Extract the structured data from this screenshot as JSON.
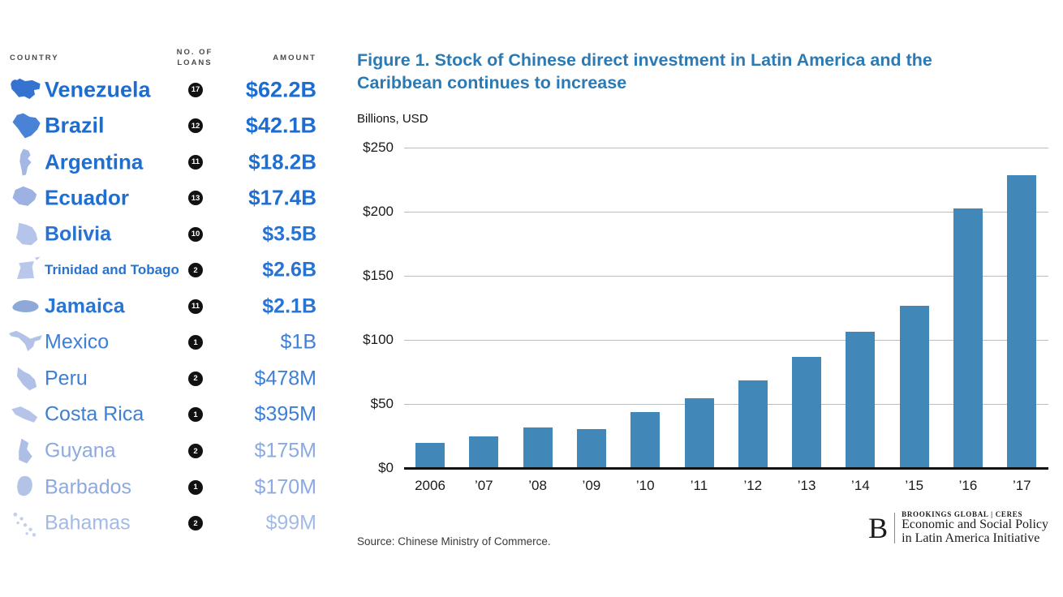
{
  "accent_colors": {
    "bar": "#4187b8",
    "title": "#2b7ab3"
  },
  "table": {
    "headers": {
      "country": "COUNTRY",
      "loans_line1": "NO. OF",
      "loans_line2": "LOANS",
      "amount": "AMOUNT"
    },
    "rows": [
      {
        "country": "Venezuela",
        "loans": "17",
        "amount": "$62.2B",
        "color": "#1c6dd2",
        "icon_color": "#3473d0",
        "weight": "700",
        "size": 27,
        "amount_size": 27
      },
      {
        "country": "Brazil",
        "loans": "12",
        "amount": "$42.1B",
        "color": "#1c6dd2",
        "icon_color": "#4a82d8",
        "weight": "700",
        "size": 27,
        "amount_size": 27
      },
      {
        "country": "Argentina",
        "loans": "11",
        "amount": "$18.2B",
        "color": "#1f6fd3",
        "icon_color": "#a4b7e5",
        "weight": "700",
        "size": 26,
        "amount_size": 26
      },
      {
        "country": "Ecuador",
        "loans": "13",
        "amount": "$17.4B",
        "color": "#1f6fd3",
        "icon_color": "#9db2e2",
        "weight": "700",
        "size": 26,
        "amount_size": 26
      },
      {
        "country": "Bolivia",
        "loans": "10",
        "amount": "$3.5B",
        "color": "#2673d4",
        "icon_color": "#b5c4ea",
        "weight": "700",
        "size": 25,
        "amount_size": 25
      },
      {
        "country": "Trinidad and Tobago",
        "loans": "2",
        "amount": "$2.6B",
        "color": "#2673d4",
        "icon_color": "#b9c7eb",
        "weight": "700",
        "size": 17,
        "amount_size": 25
      },
      {
        "country": "Jamaica",
        "loans": "11",
        "amount": "$2.1B",
        "color": "#2a75d4",
        "icon_color": "#8ea8d8",
        "weight": "700",
        "size": 25,
        "amount_size": 25
      },
      {
        "country": "Mexico",
        "loans": "1",
        "amount": "$1B",
        "color": "#3e7fd6",
        "icon_color": "#b3c2e7",
        "weight": "400",
        "size": 25,
        "amount_size": 25
      },
      {
        "country": "Peru",
        "loans": "2",
        "amount": "$478M",
        "color": "#3e7fd6",
        "icon_color": "#b0c0e6",
        "weight": "400",
        "size": 25,
        "amount_size": 25
      },
      {
        "country": "Costa Rica",
        "loans": "1",
        "amount": "$395M",
        "color": "#3e7fd6",
        "icon_color": "#b5c4e8",
        "weight": "400",
        "size": 25,
        "amount_size": 25
      },
      {
        "country": "Guyana",
        "loans": "2",
        "amount": "$175M",
        "color": "#8ca9e0",
        "icon_color": "#aebfe6",
        "weight": "300",
        "size": 25,
        "amount_size": 25
      },
      {
        "country": "Barbados",
        "loans": "1",
        "amount": "$170M",
        "color": "#8ca9e0",
        "icon_color": "#b3c3e8",
        "weight": "300",
        "size": 25,
        "amount_size": 25
      },
      {
        "country": "Bahamas",
        "loans": "2",
        "amount": "$99M",
        "color": "#a3b9e6",
        "icon_color": "#c4d0ee",
        "weight": "300",
        "size": 25,
        "amount_size": 25
      }
    ]
  },
  "chart": {
    "title": "Figure 1. Stock of Chinese direct investment in Latin America and the Caribbean continues to increase",
    "units_label": "Billions, USD",
    "source": "Source: Chinese Ministry of Commerce."
  },
  "chart_data": [
    {
      "type": "bar",
      "title": "Figure 1. Stock of Chinese direct investment in Latin America and the Caribbean continues to increase",
      "ylabel": "Billions, USD",
      "categories": [
        "2006",
        "’07",
        "’08",
        "’09",
        "’10",
        "’11",
        "’12",
        "’13",
        "’14",
        "’15",
        "’16",
        "’17"
      ],
      "values": [
        19,
        24,
        31,
        30,
        43,
        54,
        68,
        86,
        106,
        126,
        202,
        228
      ],
      "yticks": [
        "$0",
        "$50",
        "$100",
        "$150",
        "$200",
        "$250"
      ],
      "ytick_values": [
        0,
        50,
        100,
        150,
        200,
        250
      ],
      "ylim": [
        0,
        250
      ],
      "grid": true,
      "legend": false
    },
    {
      "type": "table",
      "columns": [
        "COUNTRY",
        "NO. OF LOANS",
        "AMOUNT"
      ],
      "rows": [
        [
          "Venezuela",
          17,
          "$62.2B"
        ],
        [
          "Brazil",
          12,
          "$42.1B"
        ],
        [
          "Argentina",
          11,
          "$18.2B"
        ],
        [
          "Ecuador",
          13,
          "$17.4B"
        ],
        [
          "Bolivia",
          10,
          "$3.5B"
        ],
        [
          "Trinidad and Tobago",
          2,
          "$2.6B"
        ],
        [
          "Jamaica",
          11,
          "$2.1B"
        ],
        [
          "Mexico",
          1,
          "$1B"
        ],
        [
          "Peru",
          2,
          "$478M"
        ],
        [
          "Costa Rica",
          1,
          "$395M"
        ],
        [
          "Guyana",
          2,
          "$175M"
        ],
        [
          "Barbados",
          1,
          "$170M"
        ],
        [
          "Bahamas",
          2,
          "$99M"
        ]
      ]
    }
  ],
  "logo": {
    "letter": "B",
    "line1": "BROOKINGS GLOBAL | CERES",
    "line2": "Economic and Social Policy",
    "line3": "in Latin America Initiative"
  }
}
